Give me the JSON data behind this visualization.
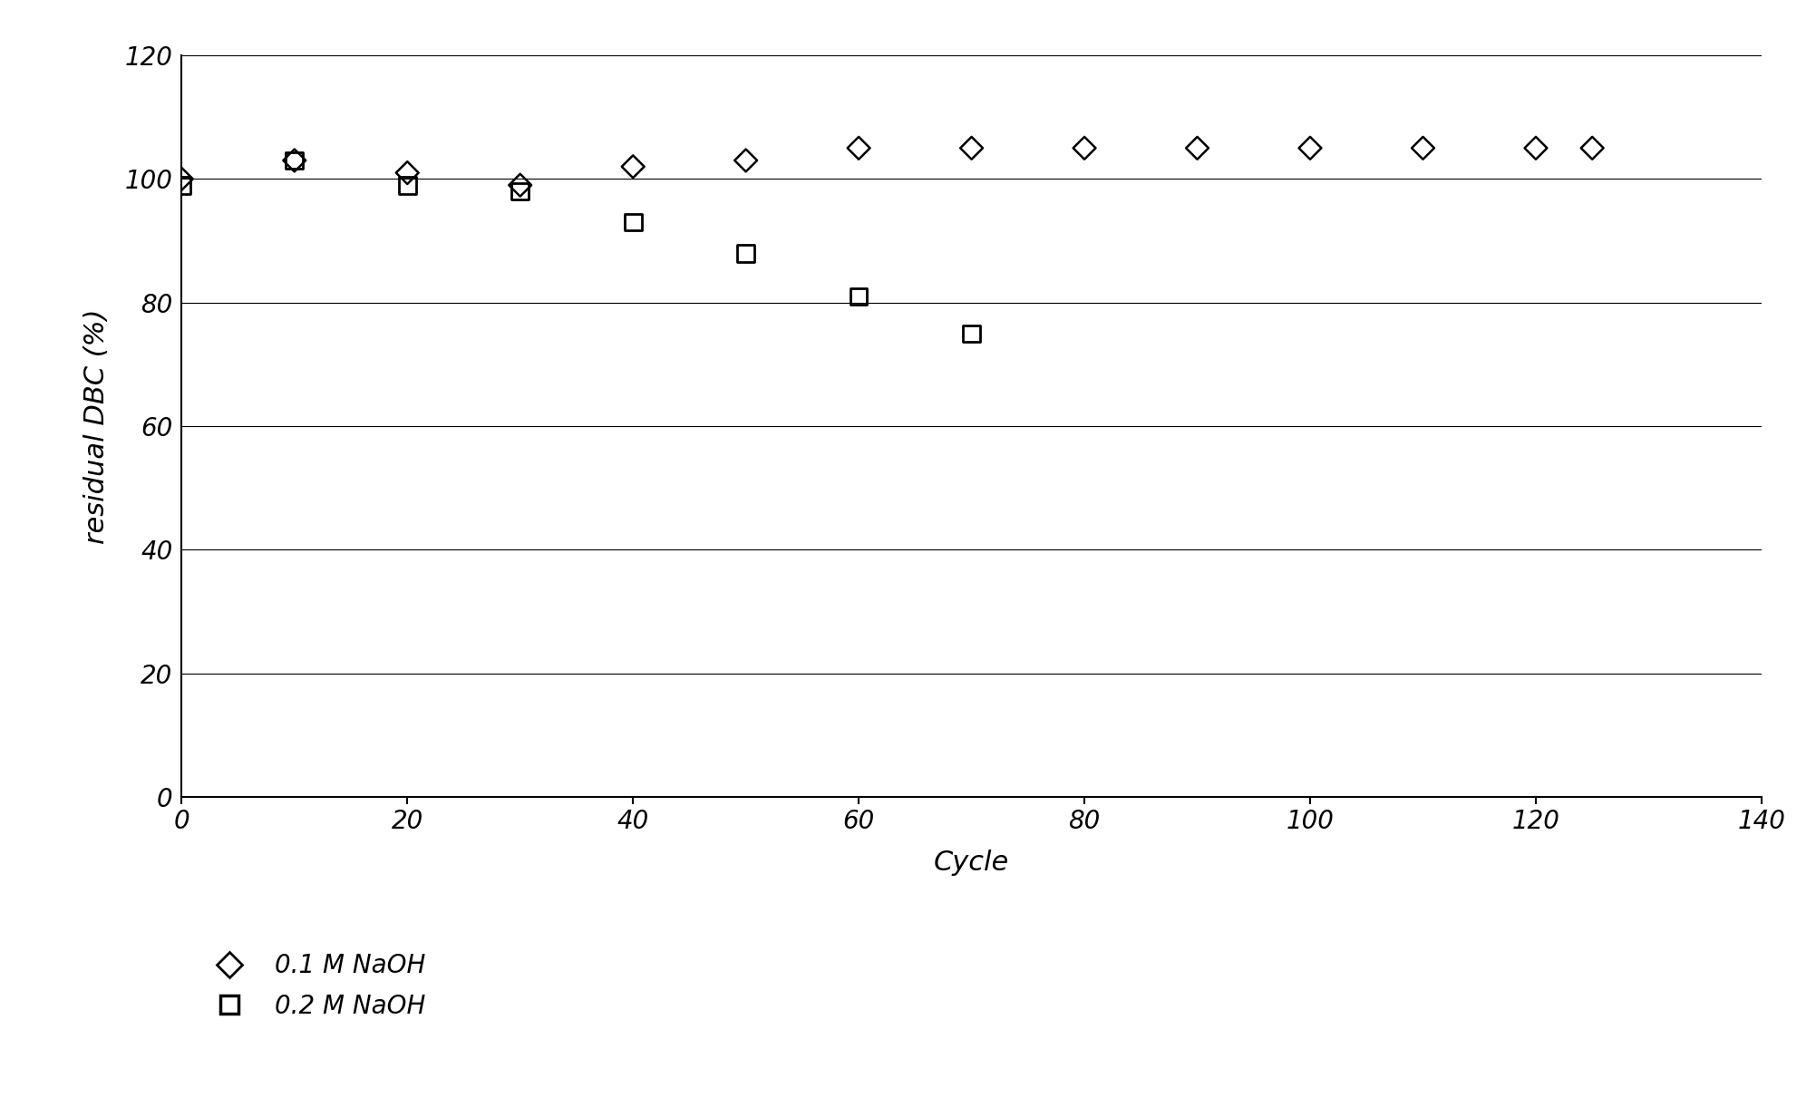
{
  "series1_label": "0.1 M NaOH",
  "series1_x": [
    0,
    10,
    20,
    30,
    40,
    50,
    60,
    70,
    80,
    90,
    100,
    110,
    120,
    125
  ],
  "series1_y": [
    100,
    103,
    101,
    99,
    102,
    103,
    105,
    105,
    105,
    105,
    105,
    105,
    105,
    105
  ],
  "series2_label": "0.2 M NaOH",
  "series2_x": [
    0,
    10,
    20,
    30,
    40,
    50,
    60,
    70
  ],
  "series2_y": [
    99,
    103,
    99,
    98,
    93,
    88,
    81,
    75
  ],
  "xlabel": "Cycle",
  "ylabel": "residual DBC (%)",
  "xlim": [
    0,
    140
  ],
  "ylim": [
    0,
    120
  ],
  "xticks": [
    0,
    20,
    40,
    60,
    80,
    100,
    120,
    140
  ],
  "yticks": [
    0,
    20,
    40,
    60,
    80,
    100,
    120
  ],
  "background_color": "#ffffff",
  "marker_color": "#000000",
  "grid_color": "#888888",
  "font_size": 20,
  "label_font_size": 22,
  "tick_font_size": 20
}
